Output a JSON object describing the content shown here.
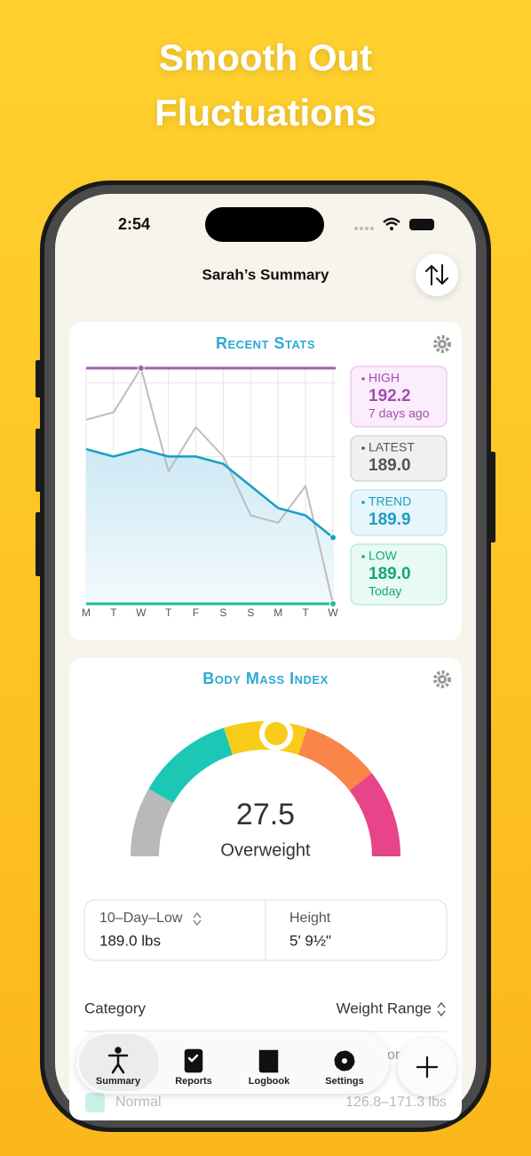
{
  "header": {
    "title_lines": [
      "Smooth Out",
      "Fluctuations"
    ]
  },
  "status_bar": {
    "time": "2:54"
  },
  "nav": {
    "title": "Sarah’s Summary"
  },
  "recent_stats": {
    "title": "Recent Stats",
    "chart_data": {
      "type": "line",
      "categories": [
        "M",
        "T",
        "W",
        "T",
        "F",
        "S",
        "S",
        "M",
        "T",
        "W"
      ],
      "series": [
        {
          "color": "#bdbdbd",
          "values": [
            191.5,
            191.6,
            192.2,
            190.8,
            191.4,
            191.0,
            190.2,
            190.1,
            190.6,
            189.0
          ]
        },
        {
          "color": "#1a9ec2",
          "values": [
            191.1,
            191.0,
            191.1,
            191.0,
            191.0,
            190.9,
            190.6,
            190.3,
            190.2,
            189.9
          ]
        }
      ],
      "high": 192.2,
      "low": 189.0,
      "high_color": "#a35fb0",
      "low_color": "#1fbf8f",
      "ylim": [
        189.0,
        192.2
      ],
      "yticks": [
        190,
        191,
        192
      ],
      "grid": true
    },
    "cards": [
      {
        "label": "HIGH",
        "value": "192.2",
        "note": "7 days ago"
      },
      {
        "label": "LATEST",
        "value": "189.0"
      },
      {
        "label": "TREND",
        "value": "189.9"
      },
      {
        "label": "LOW",
        "value": "189.0",
        "note": "Today"
      }
    ]
  },
  "bmi": {
    "title": "Body Mass Index",
    "value": "27.5",
    "category": "Overweight",
    "low_label": "10–Day–Low",
    "low_value": "189.0 lbs",
    "height_label": "Height",
    "height_value": "5' 9½\""
  },
  "table": {
    "headers": [
      "Category",
      "Weight Range"
    ],
    "rows": [
      [
        "",
        "or"
      ],
      [
        "Normal",
        "126.8–171.3 lbs"
      ]
    ]
  },
  "tab_bar": [
    "Summary",
    "Reports",
    "Logbook",
    "Settings"
  ]
}
